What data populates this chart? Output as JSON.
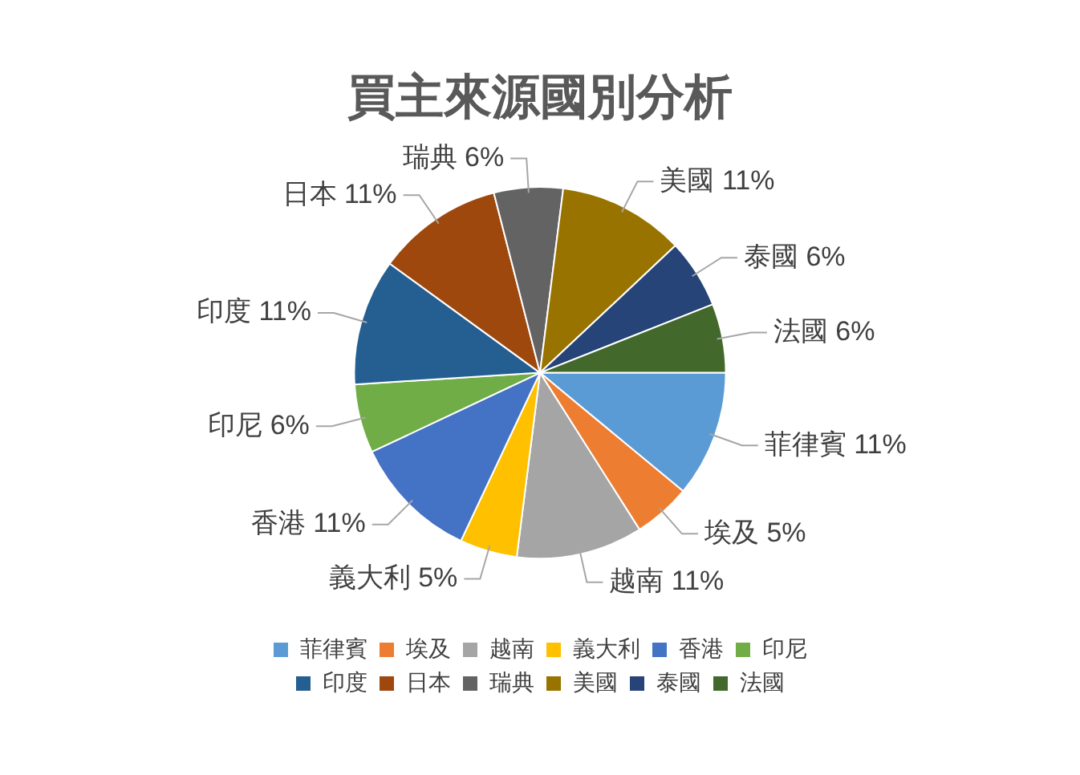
{
  "chart_data": {
    "type": "pie",
    "title": "買主來源國別分析",
    "categories": [
      "菲律賓",
      "埃及",
      "越南",
      "義大利",
      "香港",
      "印尼",
      "印度",
      "日本",
      "瑞典",
      "美國",
      "泰國",
      "法國"
    ],
    "values": [
      11,
      5,
      11,
      5,
      11,
      6,
      11,
      11,
      6,
      11,
      6,
      6
    ],
    "value_labels": [
      "11%",
      "5%",
      "11%",
      "5%",
      "11%",
      "6%",
      "11%",
      "11%",
      "6%",
      "11%",
      "6%",
      "6%"
    ],
    "colors": [
      "#5b9bd5",
      "#ed7d31",
      "#a5a5a5",
      "#ffc000",
      "#4472c4",
      "#70ad47",
      "#255e91",
      "#9e480e",
      "#636363",
      "#997300",
      "#264478",
      "#43682b"
    ],
    "legend": "bottom"
  }
}
